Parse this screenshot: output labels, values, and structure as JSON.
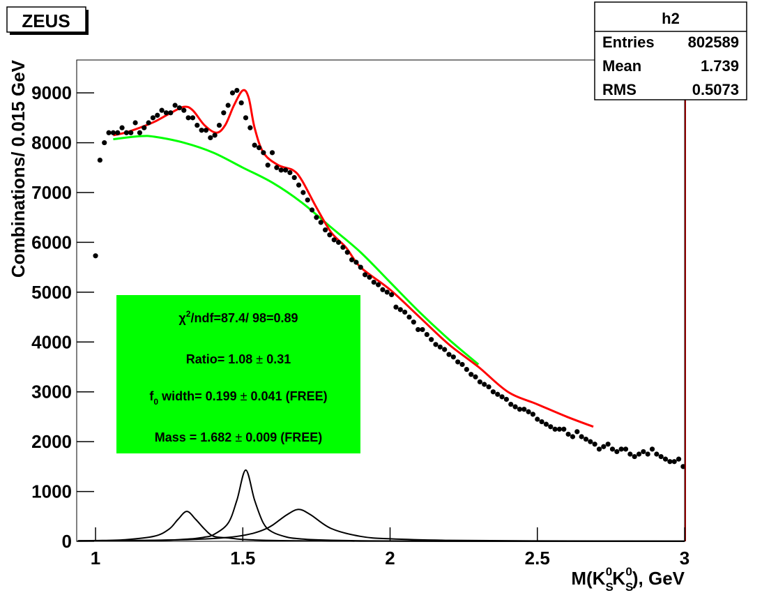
{
  "chart_data": {
    "type": "scatter",
    "label": "ZEUS",
    "xlim": [
      0.936,
      3.0
    ],
    "ylim": [
      0,
      9660
    ],
    "xticks": [
      1,
      1.5,
      2,
      2.5,
      3
    ],
    "yticks": [
      0,
      1000,
      2000,
      3000,
      4000,
      5000,
      6000,
      7000,
      8000,
      9000
    ],
    "y_title": "Combinations/ 0.015 GeV",
    "x_title": {
      "a": "M(K",
      "s1": "S",
      "z1": "0",
      "b": "K",
      "s2": "S",
      "z2": "0",
      "c": "), GeV"
    },
    "stats": {
      "title": "h2",
      "rows": [
        {
          "label": "Entries",
          "value": 802589
        },
        {
          "label": "Mean",
          "value": 1.739
        },
        {
          "label": "RMS",
          "value": 0.5073
        }
      ]
    },
    "fit_box": {
      "color": "#00ff00",
      "chi": {
        "a": "χ",
        "sup": "2",
        "b": "/ndf=87.4/ 98=0.89"
      },
      "ratio": {
        "a": "Ratio= 1.08 ",
        "pm": "±",
        "b": " 0.31"
      },
      "width": {
        "a": "f",
        "sub": "0",
        "b": " width= 0.199 ",
        "pm": "±",
        "c": " 0.041 (FREE)"
      },
      "mass": {
        "a": "Mass = 1.682 ",
        "pm": "±",
        "b": " 0.009 (FREE)"
      }
    },
    "series": [
      {
        "style": "markers",
        "color": "#000000",
        "x": [
          1.0,
          1.015,
          1.03,
          1.045,
          1.06,
          1.075,
          1.09,
          1.105,
          1.12,
          1.135,
          1.15,
          1.165,
          1.18,
          1.195,
          1.21,
          1.225,
          1.24,
          1.255,
          1.27,
          1.285,
          1.3,
          1.315,
          1.33,
          1.345,
          1.36,
          1.375,
          1.39,
          1.405,
          1.42,
          1.435,
          1.45,
          1.465,
          1.48,
          1.495,
          1.51,
          1.525,
          1.54,
          1.555,
          1.57,
          1.585,
          1.6,
          1.615,
          1.63,
          1.645,
          1.66,
          1.675,
          1.69,
          1.705,
          1.72,
          1.735,
          1.75,
          1.765,
          1.78,
          1.795,
          1.81,
          1.825,
          1.84,
          1.855,
          1.87,
          1.885,
          1.9,
          1.915,
          1.93,
          1.945,
          1.96,
          1.975,
          1.99,
          2.005,
          2.02,
          2.035,
          2.05,
          2.065,
          2.08,
          2.095,
          2.11,
          2.125,
          2.14,
          2.155,
          2.17,
          2.185,
          2.2,
          2.215,
          2.23,
          2.245,
          2.26,
          2.275,
          2.29,
          2.305,
          2.32,
          2.335,
          2.35,
          2.365,
          2.38,
          2.395,
          2.41,
          2.425,
          2.44,
          2.455,
          2.47,
          2.485,
          2.5,
          2.515,
          2.53,
          2.545,
          2.56,
          2.575,
          2.59,
          2.605,
          2.62,
          2.635,
          2.65,
          2.665,
          2.68,
          2.695,
          2.71,
          2.725,
          2.74,
          2.755,
          2.77,
          2.785,
          2.8,
          2.815,
          2.83,
          2.845,
          2.86,
          2.875,
          2.89,
          2.905,
          2.92,
          2.935,
          2.95,
          2.965,
          2.98,
          2.995
        ],
        "values": [
          5730,
          7650,
          8000,
          8200,
          8200,
          8200,
          8300,
          8200,
          8200,
          8400,
          8200,
          8300,
          8400,
          8500,
          8550,
          8650,
          8600,
          8600,
          8750,
          8700,
          8650,
          8500,
          8500,
          8350,
          8250,
          8250,
          8100,
          8150,
          8350,
          8600,
          8750,
          9000,
          9050,
          8800,
          8500,
          8300,
          7950,
          7900,
          7800,
          7550,
          7800,
          7500,
          7450,
          7450,
          7400,
          7300,
          7150,
          7000,
          6850,
          6650,
          6500,
          6400,
          6250,
          6150,
          6050,
          6000,
          5900,
          5800,
          5650,
          5600,
          5500,
          5350,
          5300,
          5200,
          5150,
          5050,
          5000,
          4950,
          4700,
          4650,
          4600,
          4500,
          4400,
          4250,
          4250,
          4150,
          4050,
          3950,
          3900,
          3850,
          3750,
          3700,
          3600,
          3550,
          3450,
          3350,
          3300,
          3200,
          3150,
          3100,
          3000,
          2950,
          2900,
          2850,
          2750,
          2700,
          2650,
          2650,
          2600,
          2550,
          2450,
          2400,
          2350,
          2300,
          2250,
          2250,
          2250,
          2150,
          2100,
          2200,
          2100,
          2050,
          2000,
          1950,
          1850,
          1900,
          1950,
          1850,
          1800,
          1850,
          1850,
          1750,
          1700,
          1750,
          1800,
          1750,
          1850,
          1750,
          1700,
          1650,
          1600,
          1600,
          1650,
          1500
        ]
      },
      {
        "style": "line",
        "color": "#00ff00",
        "x": [
          1.06,
          1.15,
          1.2,
          1.3,
          1.4,
          1.5,
          1.6,
          1.7,
          1.8,
          1.9,
          2.0,
          2.1,
          2.2,
          2.3
        ],
        "values": [
          8070,
          8130,
          8120,
          8000,
          7800,
          7500,
          7200,
          6800,
          6300,
          5800,
          5200,
          4600,
          4050,
          3550
        ]
      },
      {
        "style": "line",
        "color": "#ff0000",
        "x": [
          1.06,
          1.1,
          1.15,
          1.2,
          1.25,
          1.3,
          1.33,
          1.37,
          1.41,
          1.44,
          1.47,
          1.5,
          1.52,
          1.54,
          1.57,
          1.62,
          1.67,
          1.7,
          1.75,
          1.8,
          1.85,
          1.9,
          2.0,
          2.1,
          2.2,
          2.3,
          2.4,
          2.5,
          2.6,
          2.69
        ],
        "values": [
          8150,
          8200,
          8300,
          8420,
          8580,
          8720,
          8650,
          8350,
          8200,
          8350,
          8750,
          9050,
          8900,
          8300,
          7800,
          7550,
          7450,
          7250,
          6700,
          6200,
          5900,
          5500,
          5050,
          4500,
          3950,
          3500,
          3000,
          2750,
          2500,
          2300
        ]
      },
      {
        "style": "line",
        "color": "#000000",
        "x": [
          0.94,
          1.0,
          1.1,
          1.2,
          1.25,
          1.28,
          1.31,
          1.34,
          1.37,
          1.4,
          1.45,
          1.48,
          1.51,
          1.54,
          1.57,
          1.6,
          1.65,
          1.69,
          1.73,
          1.8,
          1.9,
          2.0,
          2.2,
          2.5,
          3.0
        ],
        "values": [
          11,
          15,
          32,
          103,
          246,
          441,
          600,
          441,
          246,
          103,
          68,
          48,
          35,
          27,
          21,
          17,
          13,
          10,
          8,
          6,
          4,
          3,
          2,
          1,
          1
        ]
      },
      {
        "style": "line",
        "color": "#000000",
        "x": [
          0.94,
          1.0,
          1.1,
          1.2,
          1.25,
          1.28,
          1.31,
          1.34,
          1.37,
          1.4,
          1.45,
          1.48,
          1.51,
          1.54,
          1.57,
          1.6,
          1.65,
          1.69,
          1.73,
          1.8,
          1.9,
          2.0,
          2.2,
          2.5,
          3.0
        ],
        "values": [
          5,
          7,
          10,
          18,
          25,
          32,
          43,
          58,
          84,
          131,
          363,
          826,
          1430,
          826,
          363,
          188,
          84,
          52,
          35,
          21,
          11,
          7,
          4,
          2,
          1
        ]
      },
      {
        "style": "line",
        "color": "#000000",
        "x": [
          0.94,
          1.0,
          1.1,
          1.2,
          1.25,
          1.28,
          1.31,
          1.34,
          1.37,
          1.4,
          1.45,
          1.48,
          1.51,
          1.54,
          1.57,
          1.6,
          1.65,
          1.69,
          1.73,
          1.8,
          1.9,
          2.0,
          2.2,
          2.5,
          3.0
        ],
        "values": [
          9,
          11,
          15,
          21,
          26,
          29,
          34,
          40,
          47,
          56,
          79,
          99,
          128,
          169,
          230,
          320,
          534,
          640,
          534,
          257,
          99,
          50,
          19,
          8,
          3
        ]
      }
    ]
  }
}
